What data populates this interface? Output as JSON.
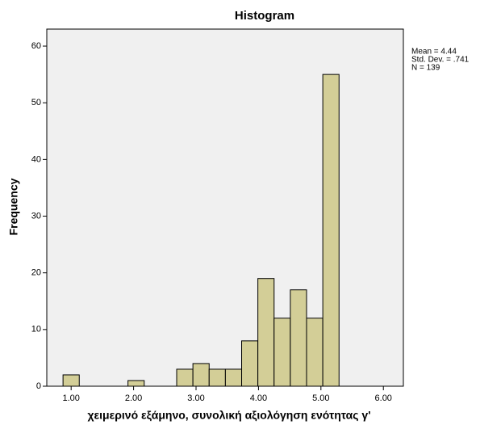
{
  "chart_data": {
    "type": "histogram",
    "title": "Histogram",
    "x_label": "χειμερινό εξάμηνο, συνολική αξιολόγηση ενότητας γ'",
    "y_label": "Frequency",
    "bins": [
      0.87,
      1.13,
      1.39,
      1.65,
      1.91,
      2.17,
      2.43,
      2.69,
      2.95,
      3.21,
      3.47,
      3.73,
      3.99,
      4.25,
      4.51,
      4.77,
      5.03,
      5.29
    ],
    "values": [
      2,
      0,
      0,
      0,
      1,
      0,
      0,
      3,
      4,
      3,
      3,
      8,
      19,
      12,
      17,
      12,
      55
    ],
    "color": "#d3ce97",
    "xlim": [
      0.61,
      6.32
    ],
    "xticks": [
      {
        "value": 1,
        "label": "1.00"
      },
      {
        "value": 2,
        "label": "2.00"
      },
      {
        "value": 3,
        "label": "3.00"
      },
      {
        "value": 4,
        "label": "4.00"
      },
      {
        "value": 5,
        "label": "5.00"
      },
      {
        "value": 6,
        "label": "6.00"
      }
    ],
    "ylim": [
      0,
      63
    ],
    "yticks": [
      0,
      10,
      20,
      30,
      40,
      50,
      60
    ],
    "stats": [
      "Mean = 4.44",
      "Std. Dev. = .741",
      "N = 139"
    ]
  }
}
